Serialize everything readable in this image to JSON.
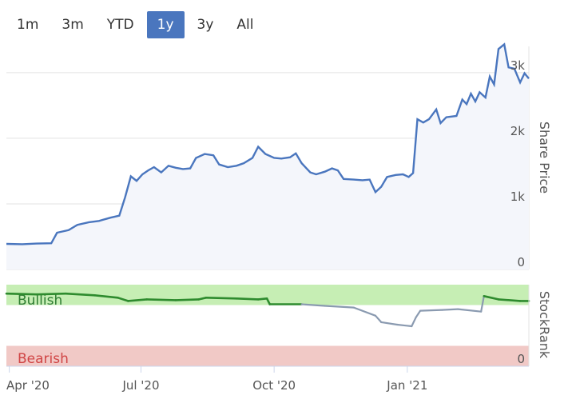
{
  "range_selector": {
    "buttons": [
      {
        "label": "1m",
        "active": false
      },
      {
        "label": "3m",
        "active": false
      },
      {
        "label": "YTD",
        "active": false
      },
      {
        "label": "1y",
        "active": true
      },
      {
        "label": "3y",
        "active": false
      },
      {
        "label": "All",
        "active": false
      }
    ]
  },
  "colors": {
    "price_line": "#4a76be",
    "price_fill": "#f4f6fb",
    "bullish_zone": "#c6eeb4",
    "bearish_zone": "#f1c9c6",
    "rank_bullish_line": "#2e8b2e",
    "rank_neutral_line": "#8a9ab0",
    "active_button": "#4a76be"
  },
  "chart_data": [
    {
      "type": "area",
      "ylabel": "Share Price",
      "ylim": [
        0,
        3400
      ],
      "y_ticks": [
        {
          "value": 0,
          "label": "0"
        },
        {
          "value": 1000,
          "label": "1k"
        },
        {
          "value": 2000,
          "label": "2k"
        },
        {
          "value": 3000,
          "label": "3k"
        }
      ],
      "x_ticks": [
        {
          "date": "2020-04-01",
          "label": "Apr '20"
        },
        {
          "date": "2020-07-01",
          "label": "Jul '20"
        },
        {
          "date": "2020-10-01",
          "label": "Oct '20"
        },
        {
          "date": "2021-01-01",
          "label": "Jan '21"
        }
      ],
      "xlim": [
        "2020-03-30",
        "2021-03-26"
      ],
      "grid": true,
      "series": [
        {
          "points": [
            [
              "2020-03-30",
              390
            ],
            [
              "2020-04-10",
              385
            ],
            [
              "2020-04-20",
              395
            ],
            [
              "2020-04-30",
              400
            ],
            [
              "2020-05-04",
              560
            ],
            [
              "2020-05-12",
              600
            ],
            [
              "2020-05-18",
              680
            ],
            [
              "2020-05-26",
              720
            ],
            [
              "2020-06-02",
              740
            ],
            [
              "2020-06-10",
              790
            ],
            [
              "2020-06-16",
              820
            ],
            [
              "2020-06-20",
              1100
            ],
            [
              "2020-06-24",
              1420
            ],
            [
              "2020-06-28",
              1350
            ],
            [
              "2020-07-02",
              1450
            ],
            [
              "2020-07-06",
              1510
            ],
            [
              "2020-07-10",
              1560
            ],
            [
              "2020-07-15",
              1480
            ],
            [
              "2020-07-20",
              1580
            ],
            [
              "2020-07-25",
              1550
            ],
            [
              "2020-07-30",
              1530
            ],
            [
              "2020-08-04",
              1540
            ],
            [
              "2020-08-08",
              1700
            ],
            [
              "2020-08-14",
              1760
            ],
            [
              "2020-08-20",
              1740
            ],
            [
              "2020-08-24",
              1600
            ],
            [
              "2020-08-30",
              1560
            ],
            [
              "2020-09-05",
              1580
            ],
            [
              "2020-09-10",
              1620
            ],
            [
              "2020-09-16",
              1700
            ],
            [
              "2020-09-20",
              1870
            ],
            [
              "2020-09-25",
              1760
            ],
            [
              "2020-10-01",
              1700
            ],
            [
              "2020-10-06",
              1690
            ],
            [
              "2020-10-12",
              1710
            ],
            [
              "2020-10-16",
              1770
            ],
            [
              "2020-10-20",
              1620
            ],
            [
              "2020-10-26",
              1480
            ],
            [
              "2020-10-30",
              1450
            ],
            [
              "2020-11-05",
              1490
            ],
            [
              "2020-11-10",
              1540
            ],
            [
              "2020-11-14",
              1510
            ],
            [
              "2020-11-18",
              1380
            ],
            [
              "2020-11-25",
              1370
            ],
            [
              "2020-12-01",
              1360
            ],
            [
              "2020-12-06",
              1370
            ],
            [
              "2020-12-10",
              1180
            ],
            [
              "2020-12-14",
              1260
            ],
            [
              "2020-12-18",
              1410
            ],
            [
              "2020-12-24",
              1440
            ],
            [
              "2020-12-29",
              1450
            ],
            [
              "2021-01-02",
              1410
            ],
            [
              "2021-01-05",
              1470
            ],
            [
              "2021-01-08",
              2290
            ],
            [
              "2021-01-12",
              2240
            ],
            [
              "2021-01-16",
              2290
            ],
            [
              "2021-01-21",
              2440
            ],
            [
              "2021-01-24",
              2230
            ],
            [
              "2021-01-28",
              2320
            ],
            [
              "2021-02-04",
              2340
            ],
            [
              "2021-02-08",
              2590
            ],
            [
              "2021-02-11",
              2520
            ],
            [
              "2021-02-14",
              2680
            ],
            [
              "2021-02-17",
              2560
            ],
            [
              "2021-02-20",
              2700
            ],
            [
              "2021-02-24",
              2620
            ],
            [
              "2021-02-27",
              2940
            ],
            [
              "2021-03-02",
              2820
            ],
            [
              "2021-03-05",
              3360
            ],
            [
              "2021-03-09",
              3430
            ],
            [
              "2021-03-12",
              3080
            ],
            [
              "2021-03-16",
              3060
            ],
            [
              "2021-03-20",
              2850
            ],
            [
              "2021-03-23",
              2990
            ],
            [
              "2021-03-26",
              2910
            ]
          ]
        }
      ]
    },
    {
      "type": "line",
      "ylabel": "StockRank",
      "ylim": [
        0,
        100
      ],
      "y_ticks": [
        {
          "value": 0,
          "label": "0"
        }
      ],
      "zones": [
        {
          "label": "Bullish",
          "from": 75,
          "to": 100
        },
        {
          "label": "Bearish",
          "from": 0,
          "to": 25
        }
      ],
      "series": [
        {
          "points": [
            [
              "2020-03-30",
              89
            ],
            [
              "2020-04-20",
              88
            ],
            [
              "2020-05-10",
              89
            ],
            [
              "2020-05-30",
              87
            ],
            [
              "2020-06-15",
              84
            ],
            [
              "2020-06-22",
              80
            ],
            [
              "2020-07-05",
              82
            ],
            [
              "2020-07-25",
              81
            ],
            [
              "2020-08-10",
              82
            ],
            [
              "2020-08-15",
              84
            ],
            [
              "2020-09-05",
              83
            ],
            [
              "2020-09-20",
              82
            ],
            [
              "2020-09-26",
              83
            ],
            [
              "2020-09-28",
              76
            ],
            [
              "2020-10-20",
              76
            ],
            [
              "2020-11-05",
              74
            ],
            [
              "2020-11-25",
              72
            ],
            [
              "2020-12-10",
              62
            ],
            [
              "2020-12-14",
              54
            ],
            [
              "2020-12-25",
              51
            ],
            [
              "2021-01-04",
              49
            ],
            [
              "2021-01-07",
              60
            ],
            [
              "2021-01-10",
              68
            ],
            [
              "2021-01-25",
              69
            ],
            [
              "2021-02-05",
              70
            ],
            [
              "2021-02-21",
              67
            ],
            [
              "2021-02-23",
              86
            ],
            [
              "2021-03-05",
              82
            ],
            [
              "2021-03-20",
              80
            ],
            [
              "2021-03-26",
              80
            ]
          ]
        }
      ]
    }
  ]
}
